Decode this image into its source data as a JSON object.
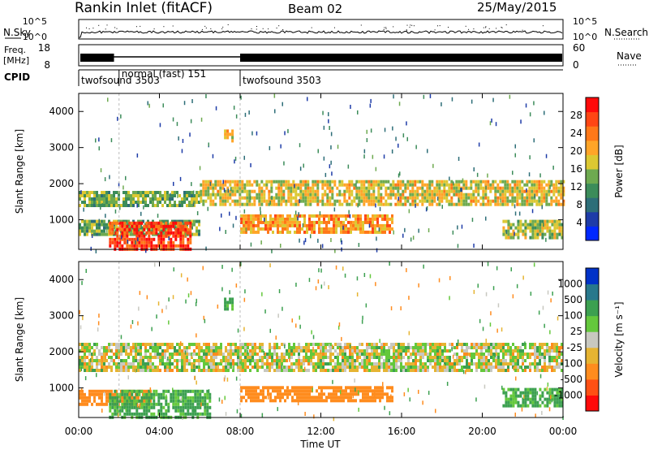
{
  "header": {
    "title": "Rankin Inlet (fitACF)",
    "beam": "Beam 02",
    "date": "25/May/2015"
  },
  "top_panels": {
    "nsky_label": "N.Sky",
    "nsky_ticks": [
      "10^5",
      "10^0"
    ],
    "nsearch_label": "N.Search",
    "nsearch_ticks": [
      "10^5",
      "10^0"
    ],
    "freq_label_1": "Freq.",
    "freq_label_2": "[MHz]",
    "freq_ticks": [
      "18",
      "8"
    ],
    "nave_label": "Nave",
    "nave_ticks": [
      "60",
      "0"
    ],
    "cpid_label": "CPID",
    "cpid_segments": [
      {
        "label": "twofsound 3503",
        "start_hour": 0.0,
        "end_hour": 2.0
      },
      {
        "label": "normal (fast) 151",
        "start_hour": 2.0,
        "end_hour": 8.0
      },
      {
        "label": "twofsound 3503",
        "start_hour": 8.0,
        "end_hour": 24.0
      }
    ]
  },
  "colorbars": {
    "power": {
      "label": "Power [dB]",
      "ticks": [
        "28",
        "24",
        "20",
        "16",
        "12",
        "8",
        "4"
      ],
      "tick_values": [
        28,
        24,
        20,
        16,
        12,
        8,
        4
      ],
      "range": [
        0,
        32
      ],
      "colors": [
        "#0028ff",
        "#1e3ca8",
        "#2d6e78",
        "#3c8c5a",
        "#6eaa50",
        "#dcc832",
        "#ffa528",
        "#ff7818",
        "#ff4614",
        "#ff0a0a"
      ]
    },
    "velocity": {
      "label": "Velocity [m s⁻¹]",
      "ticks": [
        "1000",
        "500",
        "100",
        "25",
        "-25",
        "-100",
        "-500",
        "-1000"
      ],
      "colors": [
        "#0032c8",
        "#28788c",
        "#3ca050",
        "#64c83c",
        "#c8c8c0",
        "#e6b432",
        "#ff8c1e",
        "#ff5014",
        "#ff0a0a"
      ]
    }
  },
  "axes": {
    "ylabel": "Slant Range [km]",
    "xlabel": "Time UT",
    "yticks": [
      "4000",
      "3000",
      "2000",
      "1000"
    ],
    "xticks": [
      "00:00",
      "04:00",
      "08:00",
      "12:00",
      "16:00",
      "20:00",
      "00:00"
    ]
  },
  "chart_data": {
    "type": "heatmap",
    "title": "Rankin Inlet (fitACF) Beam 02 25/May/2015",
    "xlabel": "Time UT",
    "ylabel": "Slant Range [km]",
    "xlim_hours": [
      0,
      24
    ],
    "ylim_km": [
      180,
      4500
    ],
    "panels": [
      {
        "name": "Power",
        "units": "dB",
        "colorbar_range": [
          0,
          32
        ],
        "regions": [
          {
            "t0": 0.0,
            "t1": 6.0,
            "r0": 1350,
            "r1": 1800,
            "value": 14
          },
          {
            "t0": 6.0,
            "t1": 24.0,
            "r0": 1400,
            "r1": 2100,
            "value": 18
          },
          {
            "t0": 0.0,
            "t1": 6.0,
            "r0": 550,
            "r1": 1000,
            "value": 14
          },
          {
            "t0": 1.5,
            "t1": 5.6,
            "r0": 200,
            "r1": 950,
            "value": 28
          },
          {
            "t0": 8.0,
            "t1": 15.5,
            "r0": 650,
            "r1": 1150,
            "value": 22
          },
          {
            "t0": 21.0,
            "t1": 24.0,
            "r0": 500,
            "r1": 1000,
            "value": 16
          },
          {
            "t0": 7.2,
            "t1": 7.6,
            "r0": 3200,
            "r1": 3500,
            "value": 20
          }
        ]
      },
      {
        "name": "Velocity",
        "units": "m s-1",
        "regions": [
          {
            "t0": 0.0,
            "t1": 24.0,
            "r0": 1450,
            "r1": 2250,
            "value": 0
          },
          {
            "t0": 0.0,
            "t1": 3.5,
            "r0": 500,
            "r1": 950,
            "value": -300
          },
          {
            "t0": 1.5,
            "t1": 6.5,
            "r0": 200,
            "r1": 950,
            "value": 150
          },
          {
            "t0": 8.0,
            "t1": 15.5,
            "r0": 650,
            "r1": 1050,
            "value": -300
          },
          {
            "t0": 21.0,
            "t1": 24.0,
            "r0": 500,
            "r1": 1000,
            "value": 150
          },
          {
            "t0": 7.2,
            "t1": 7.6,
            "r0": 3200,
            "r1": 3500,
            "value": 150
          }
        ]
      }
    ]
  }
}
